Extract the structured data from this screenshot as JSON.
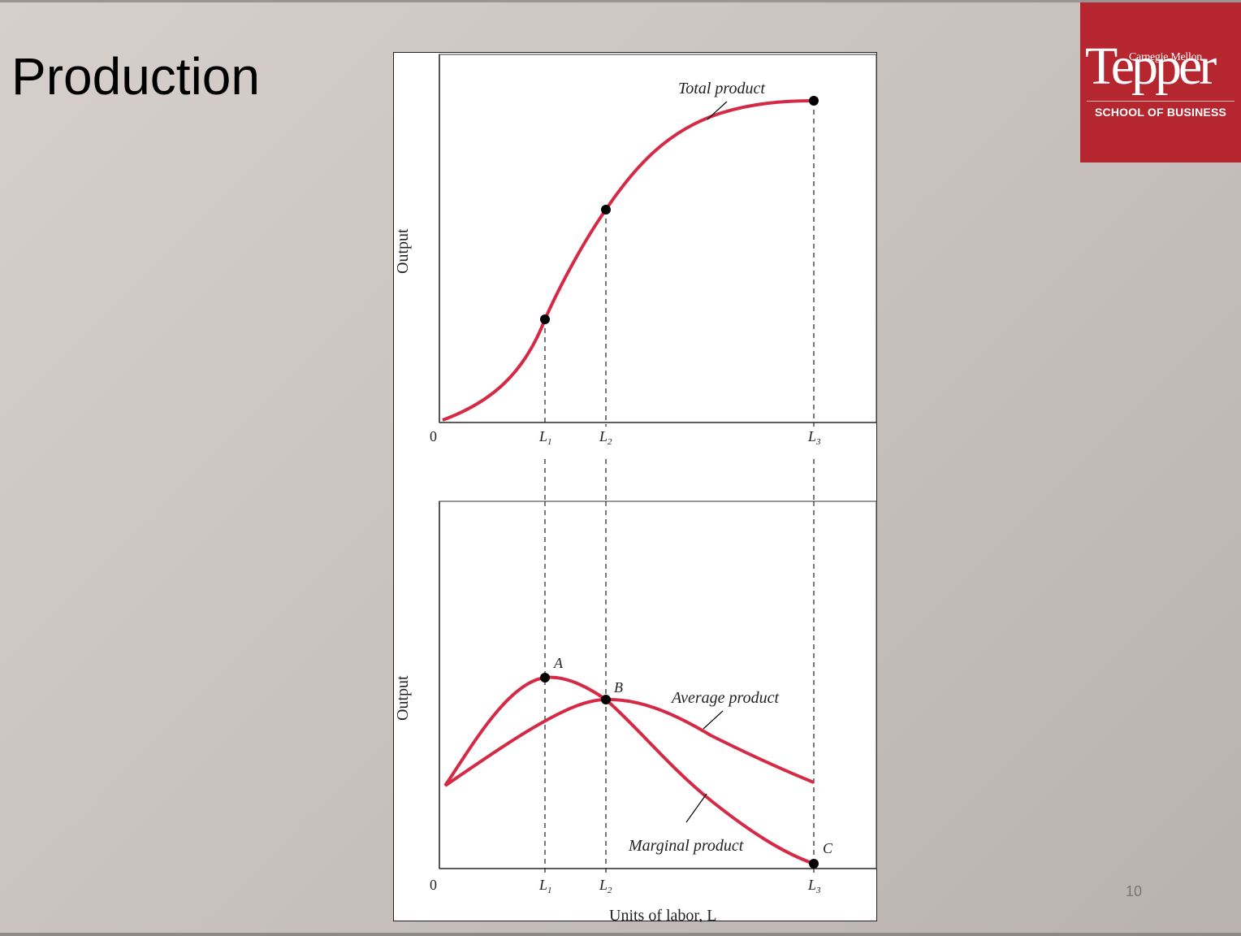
{
  "slide": {
    "title": "Production",
    "page_number": "10"
  },
  "logo": {
    "university": "Carnegie Mellon",
    "name": "Tepper",
    "school": "SCHOOL OF BUSINESS",
    "color": "#b5262f"
  },
  "diagram": {
    "curve_color": "#d42a46",
    "top_panel": {
      "ylabel": "Output",
      "origin_label": "0",
      "curve_label": "Total product",
      "ticks": [
        "L1",
        "L2",
        "L3"
      ]
    },
    "bottom_panel": {
      "ylabel": "Output",
      "origin_label": "0",
      "xlabel": "Units of labor, L",
      "average_label": "Average product",
      "marginal_label": "Marginal product",
      "point_labels": [
        "A",
        "B",
        "C"
      ],
      "ticks": [
        "L1",
        "L2",
        "L3"
      ]
    }
  }
}
